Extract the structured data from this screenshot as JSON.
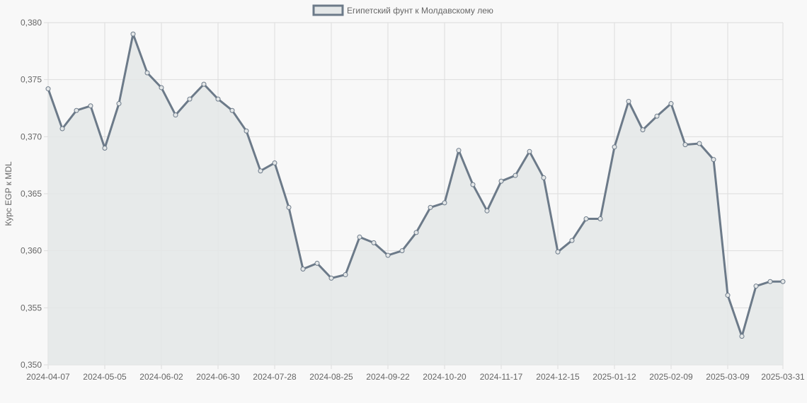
{
  "chart_data": {
    "type": "line",
    "title": "",
    "legend": {
      "label": "Египетский фунт к Молдавскому лею",
      "position": "top"
    },
    "xlabel": "",
    "ylabel": "Курс EGP к MDL",
    "ylim": [
      0.35,
      0.38
    ],
    "y_ticks": [
      "0,350",
      "0,355",
      "0,360",
      "0,365",
      "0,370",
      "0,375",
      "0,380"
    ],
    "x_tick_labels": [
      "2024-04-07",
      "2024-05-05",
      "2024-06-02",
      "2024-06-30",
      "2024-07-28",
      "2024-08-25",
      "2024-09-22",
      "2024-10-20",
      "2024-11-17",
      "2024-12-15",
      "2025-01-12",
      "2025-02-09",
      "2025-03-09",
      "2025-03-31"
    ],
    "grid": true,
    "fill": true,
    "colors": {
      "line": "#6c7a89",
      "fill": "#e4e7e8",
      "grid": "#dddddd",
      "background": "#f8f8f8"
    },
    "series": [
      {
        "name": "Египетский фунт к Молдавскому лею",
        "values": [
          0.3742,
          0.3707,
          0.3723,
          0.3727,
          0.369,
          0.3729,
          0.379,
          0.3756,
          0.3743,
          0.3719,
          0.3733,
          0.3746,
          0.3733,
          0.3723,
          0.3705,
          0.367,
          0.3677,
          0.3638,
          0.3584,
          0.3589,
          0.3576,
          0.3579,
          0.3612,
          0.3607,
          0.3596,
          0.36,
          0.3616,
          0.3638,
          0.3642,
          0.3688,
          0.3658,
          0.3635,
          0.3661,
          0.3666,
          0.3687,
          0.3664,
          0.3599,
          0.3609,
          0.3628,
          0.3628,
          0.3691,
          0.3731,
          0.3706,
          0.3718,
          0.3729,
          0.3693,
          0.3694,
          0.368,
          0.3561,
          0.3525,
          0.3569,
          0.3573,
          0.3573
        ]
      }
    ]
  }
}
